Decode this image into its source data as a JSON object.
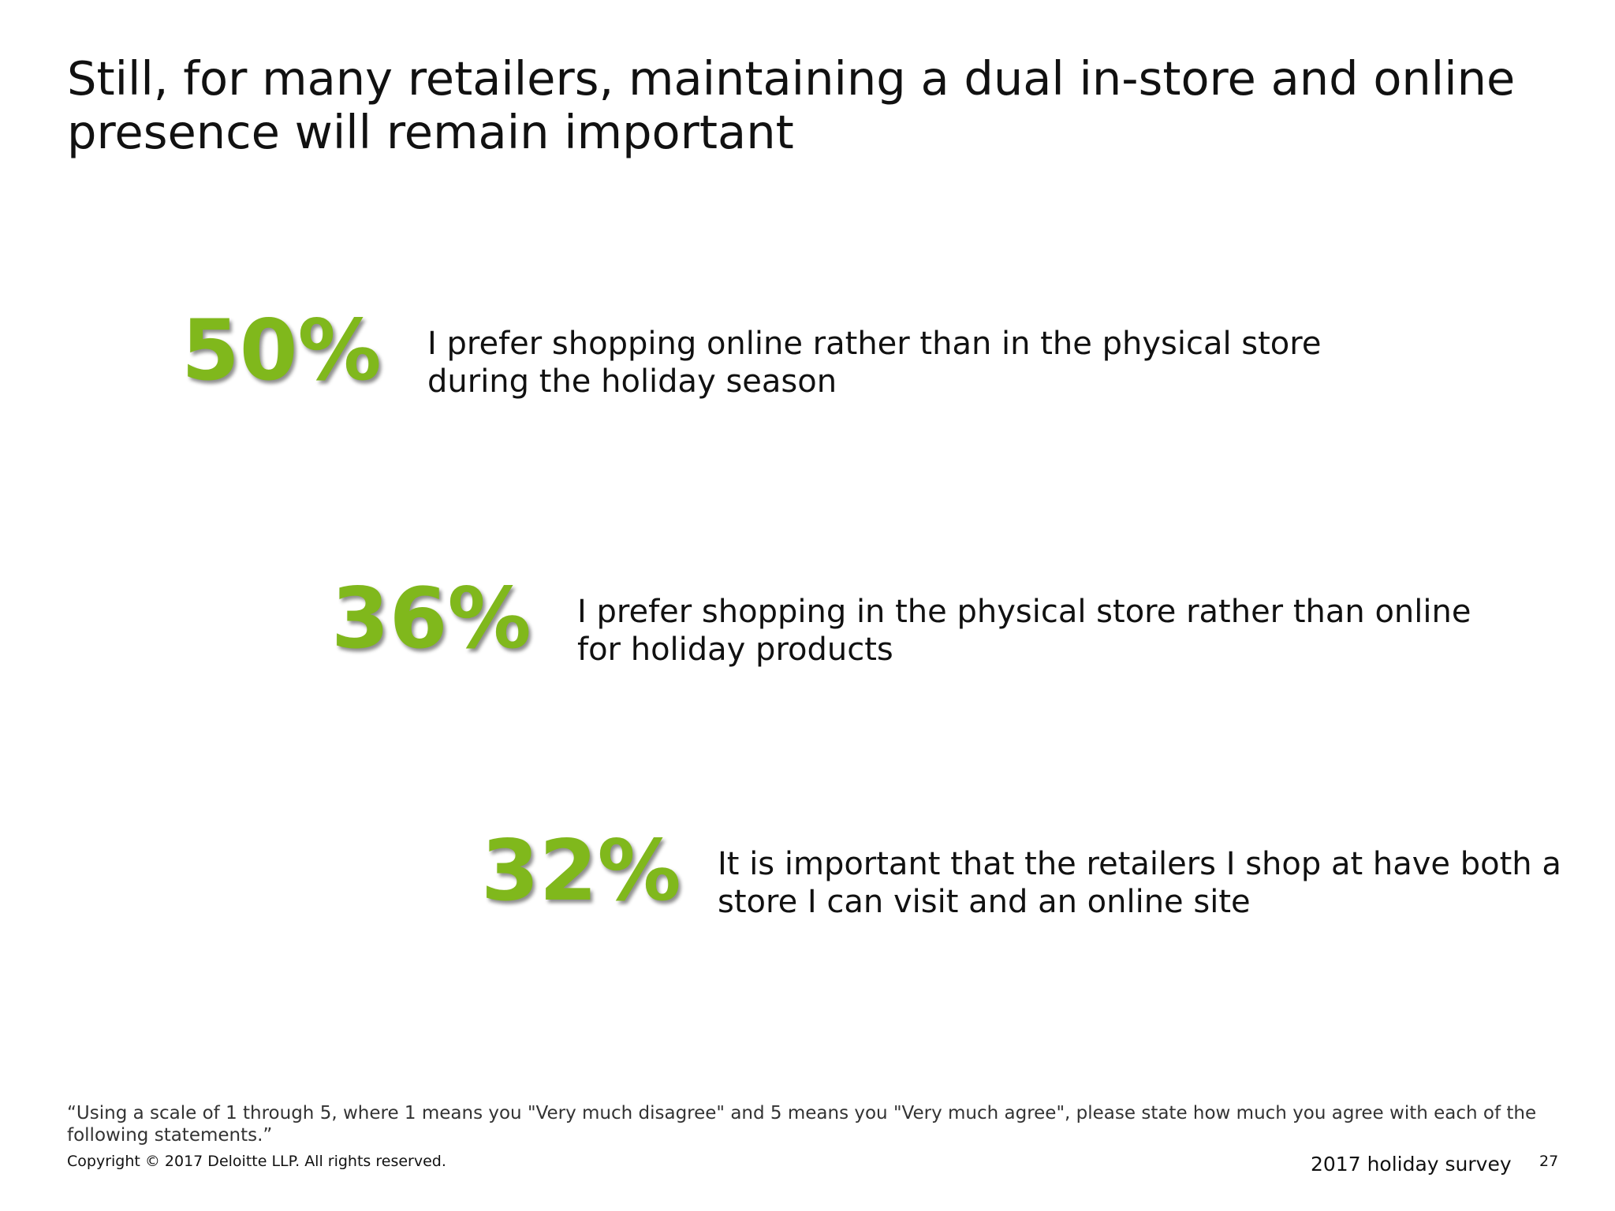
{
  "title": "Still, for many retailers, maintaining a dual in-store and online presence will remain important",
  "stats": [
    {
      "value": "50%",
      "text": "I prefer shopping online rather than in the physical store during the holiday season"
    },
    {
      "value": "36%",
      "text": "I prefer shopping in the physical store rather than online for holiday products"
    },
    {
      "value": "32%",
      "text": "It is important that the retailers I shop at have both a store I can visit and an online site"
    }
  ],
  "footnote": "“Using a scale of 1 through 5, where 1 means you \"Very much disagree\" and 5 means you \"Very much agree\", please state how much you agree with each of the following statements.”",
  "footer": {
    "copyright": "Copyright © 2017 Deloitte LLP. All rights reserved.",
    "survey": "2017 holiday survey",
    "page": "27"
  },
  "colors": {
    "accent": "#80b81c",
    "text": "#111111"
  }
}
